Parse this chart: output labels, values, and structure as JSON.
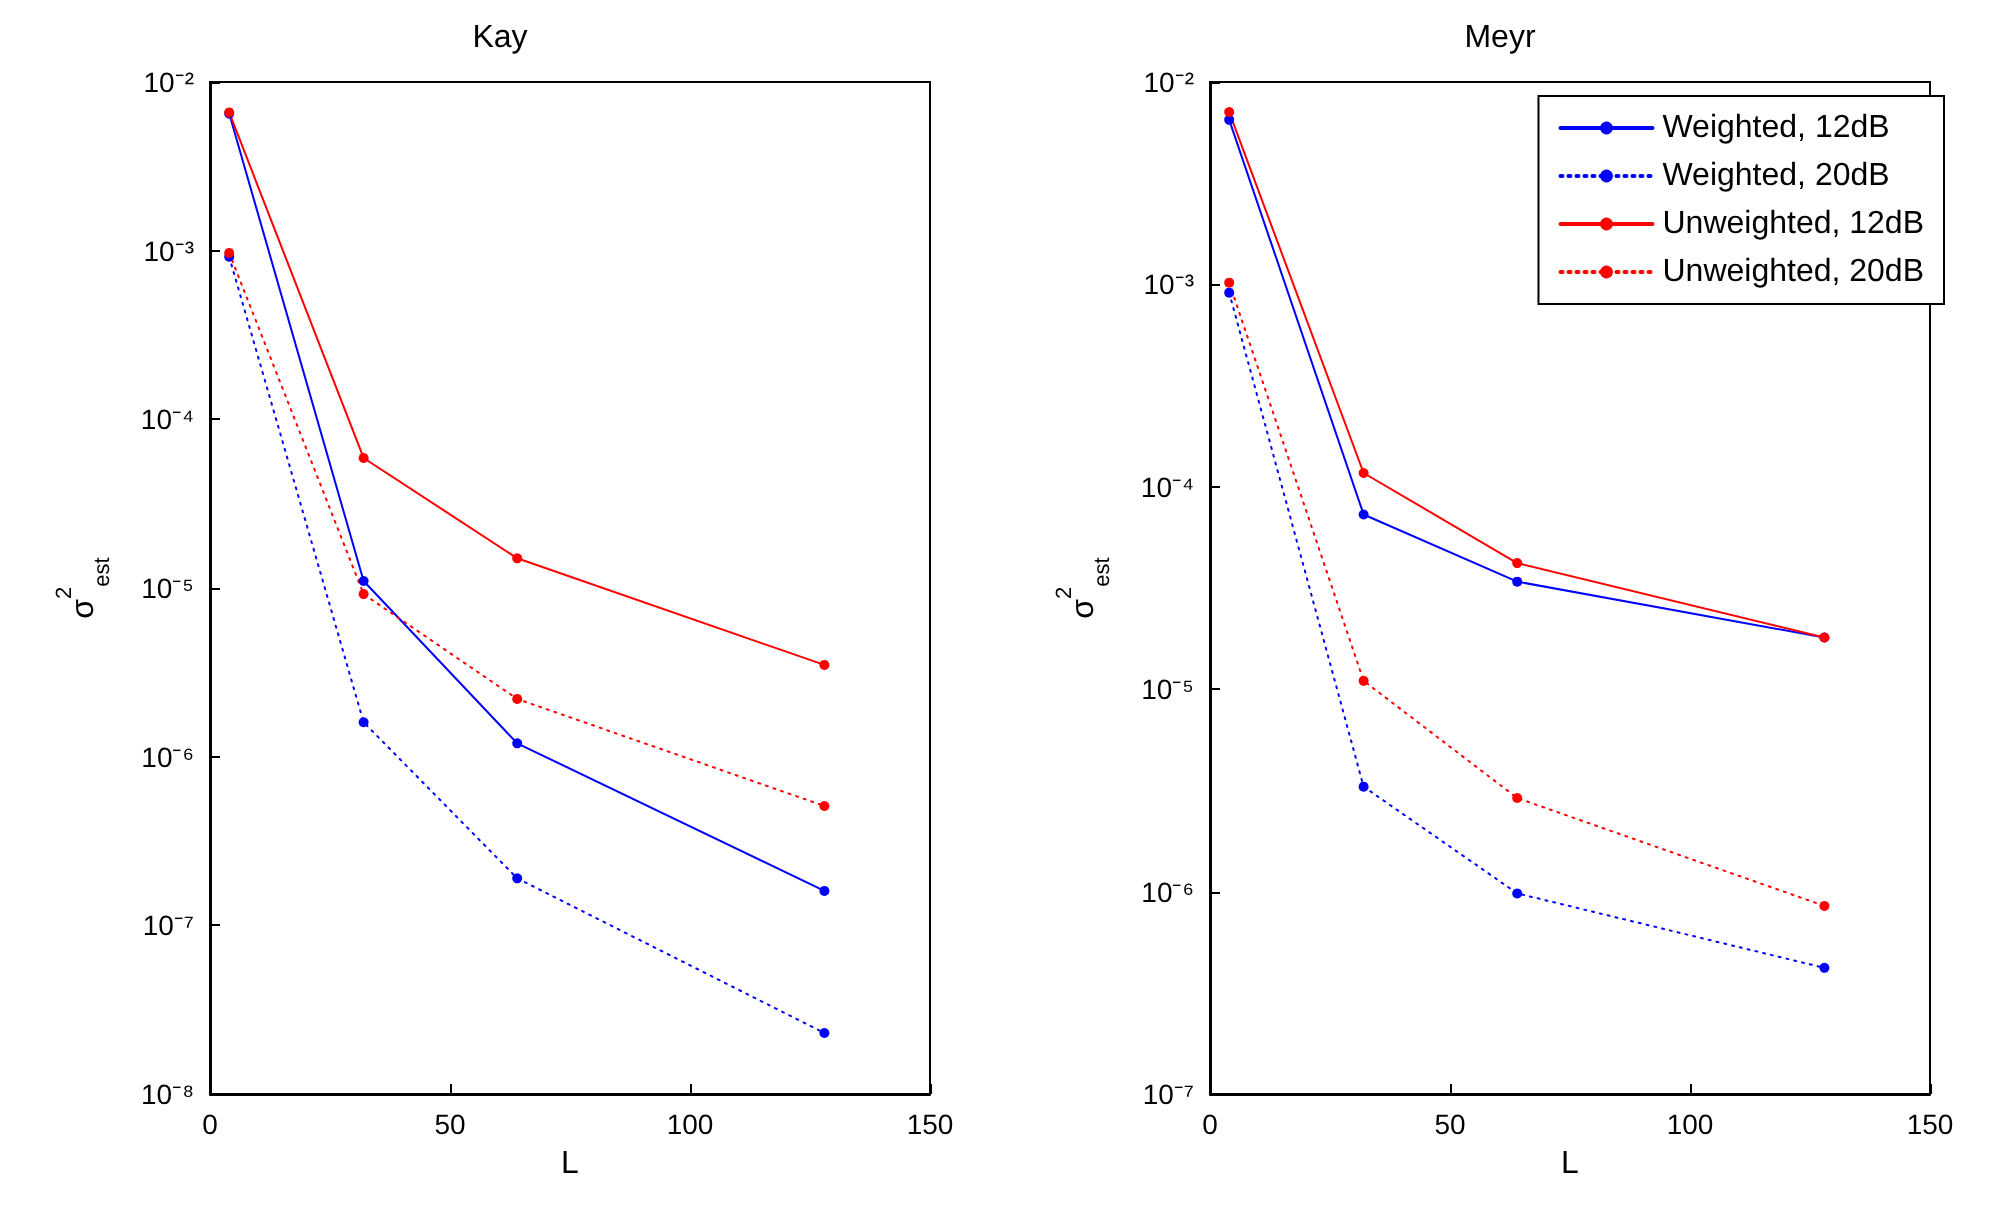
{
  "chart_data": [
    {
      "type": "line",
      "title": "Kay",
      "xlabel": "L",
      "ylabel": "σ$^{2}$$_{est}$",
      "log": "y",
      "grid": false,
      "legend": false,
      "marker": "circle",
      "xlim": [
        0,
        150
      ],
      "xticks": [
        0,
        50,
        100,
        150
      ],
      "ylim": [
        1e-08,
        0.01
      ],
      "yticks": [
        {
          "value": 1e-08,
          "label": "10⁻⁸"
        },
        {
          "value": 1e-07,
          "label": "10⁻⁷"
        },
        {
          "value": 1e-06,
          "label": "10⁻⁶"
        },
        {
          "value": 1e-05,
          "label": "10⁻⁵"
        },
        {
          "value": 0.0001,
          "label": "10⁻⁴"
        },
        {
          "value": 0.001,
          "label": "10⁻³"
        },
        {
          "value": 0.01,
          "label": "10⁻²"
        }
      ],
      "x": [
        4,
        32,
        64,
        128
      ],
      "series": [
        {
          "color": "#0000ff",
          "line_style": "solid",
          "values": [
            0.0065,
            1.1e-05,
            1.2e-06,
            1.6e-07
          ]
        },
        {
          "color": "#0000ff",
          "line_style": "dotted",
          "values": [
            0.00092,
            1.6e-06,
            1.9e-07,
            2.3e-08
          ]
        },
        {
          "color": "#ff0000",
          "line_style": "solid",
          "values": [
            0.0066,
            5.9e-05,
            1.5e-05,
            3.5e-06
          ]
        },
        {
          "color": "#ff0000",
          "line_style": "dotted",
          "values": [
            0.00097,
            9.2e-06,
            2.2e-06,
            5.1e-07
          ]
        }
      ]
    },
    {
      "type": "line",
      "title": "Meyr",
      "xlabel": "L",
      "ylabel": "σ$^{2}$$_{est}$",
      "log": "y",
      "grid": false,
      "legend": "top right",
      "marker": "circle",
      "xlim": [
        0,
        150
      ],
      "xticks": [
        0,
        50,
        100,
        150
      ],
      "ylim": [
        1e-07,
        0.01
      ],
      "yticks": [
        {
          "value": 1e-07,
          "label": "10⁻⁷"
        },
        {
          "value": 1e-06,
          "label": "10⁻⁶"
        },
        {
          "value": 1e-05,
          "label": "10⁻⁵"
        },
        {
          "value": 0.0001,
          "label": "10⁻⁴"
        },
        {
          "value": 0.001,
          "label": "10⁻³"
        },
        {
          "value": 0.01,
          "label": "10⁻²"
        }
      ],
      "x": [
        4,
        32,
        64,
        128
      ],
      "series": [
        {
          "name": "Weighted, 12dB",
          "color": "#0000ff",
          "line_style": "solid",
          "values": [
            0.0065,
            7.3e-05,
            3.4e-05,
            1.8e-05
          ]
        },
        {
          "name": "Weighted, 20dB",
          "color": "#0000ff",
          "line_style": "dotted",
          "values": [
            0.00091,
            3.3e-06,
            9.8e-07,
            4.2e-07
          ]
        },
        {
          "name": "Unweighted, 12dB",
          "color": "#ff0000",
          "line_style": "solid",
          "values": [
            0.0071,
            0.000117,
            4.2e-05,
            1.8e-05
          ]
        },
        {
          "name": "Unweighted, 20dB",
          "color": "#ff0000",
          "line_style": "dotted",
          "values": [
            0.00102,
            1.1e-05,
            2.9e-06,
            8.5e-07
          ]
        }
      ]
    }
  ]
}
